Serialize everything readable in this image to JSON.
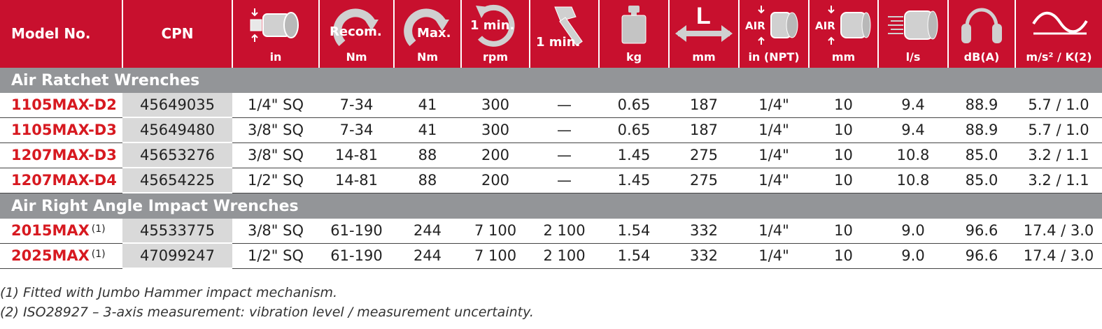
{
  "header": {
    "model_label": "Model No.",
    "cpn_label": "CPN",
    "columns": [
      {
        "icon": "square-drive-icon",
        "overlay": "",
        "unit": "in"
      },
      {
        "icon": "torque-arrow-icon",
        "overlay": "Recom.",
        "unit": "Nm"
      },
      {
        "icon": "torque-arrow-icon",
        "overlay": "Max.",
        "unit": "Nm"
      },
      {
        "icon": "rotation-speed-icon",
        "overlay": "1 min.",
        "unit": "rpm"
      },
      {
        "icon": "hammer-blow-icon",
        "overlay": "1 min.",
        "unit": ""
      },
      {
        "icon": "weight-icon",
        "overlay": "",
        "unit": "kg"
      },
      {
        "icon": "length-arrow-icon",
        "overlay": "L",
        "unit": "mm"
      },
      {
        "icon": "air-inlet-icon",
        "overlay": "AIR",
        "unit": "in (NPT)"
      },
      {
        "icon": "hose-size-icon",
        "overlay": "AIR",
        "unit": "mm"
      },
      {
        "icon": "air-consumption-icon",
        "overlay": "",
        "unit": "l/s"
      },
      {
        "icon": "ear-protection-icon",
        "overlay": "",
        "unit": "dB(A)"
      },
      {
        "icon": "vibration-wave-icon",
        "overlay": "",
        "unit": "m/s² / K(2)"
      }
    ]
  },
  "sections": [
    {
      "title": "Air Ratchet Wrenches",
      "rows": [
        {
          "model": "1105MAX-D2",
          "note": "",
          "cpn": "45649035",
          "cells": [
            "1/4\" SQ",
            "7-34",
            "41",
            "300",
            "—",
            "0.65",
            "187",
            "1/4\"",
            "10",
            "9.4",
            "88.9",
            "5.7 / 1.0"
          ]
        },
        {
          "model": "1105MAX-D3",
          "note": "",
          "cpn": "45649480",
          "cells": [
            "3/8\" SQ",
            "7-34",
            "41",
            "300",
            "—",
            "0.65",
            "187",
            "1/4\"",
            "10",
            "9.4",
            "88.9",
            "5.7 / 1.0"
          ]
        },
        {
          "model": "1207MAX-D3",
          "note": "",
          "cpn": "45653276",
          "cells": [
            "3/8\" SQ",
            "14-81",
            "88",
            "200",
            "—",
            "1.45",
            "275",
            "1/4\"",
            "10",
            "10.8",
            "85.0",
            "3.2 / 1.1"
          ]
        },
        {
          "model": "1207MAX-D4",
          "note": "",
          "cpn": "45654225",
          "cells": [
            "1/2\" SQ",
            "14-81",
            "88",
            "200",
            "—",
            "1.45",
            "275",
            "1/4\"",
            "10",
            "10.8",
            "85.0",
            "3.2 / 1.1"
          ]
        }
      ]
    },
    {
      "title": "Air Right Angle Impact Wrenches",
      "rows": [
        {
          "model": "2015MAX",
          "note": "(1)",
          "cpn": "45533775",
          "cells": [
            "3/8\" SQ",
            "61-190",
            "244",
            "7 100",
            "2 100",
            "1.54",
            "332",
            "1/4\"",
            "10",
            "9.0",
            "96.6",
            "17.4 / 3.0"
          ]
        },
        {
          "model": "2025MAX",
          "note": "(1)",
          "cpn": "47099247",
          "cells": [
            "1/2\" SQ",
            "61-190",
            "244",
            "7 100",
            "2 100",
            "1.54",
            "332",
            "1/4\"",
            "10",
            "9.0",
            "96.6",
            "17.4 / 3.0"
          ]
        }
      ]
    }
  ],
  "footnotes": [
    "(1) Fitted with Jumbo Hammer impact mechanism.",
    "(2) ISO28927 – 3-axis measurement: vibration level / measurement uncertainty."
  ],
  "colors": {
    "header_red": "#c8102e",
    "section_gray": "#939598",
    "model_red": "#d71920",
    "cpn_gray": "#d9d9d9"
  }
}
